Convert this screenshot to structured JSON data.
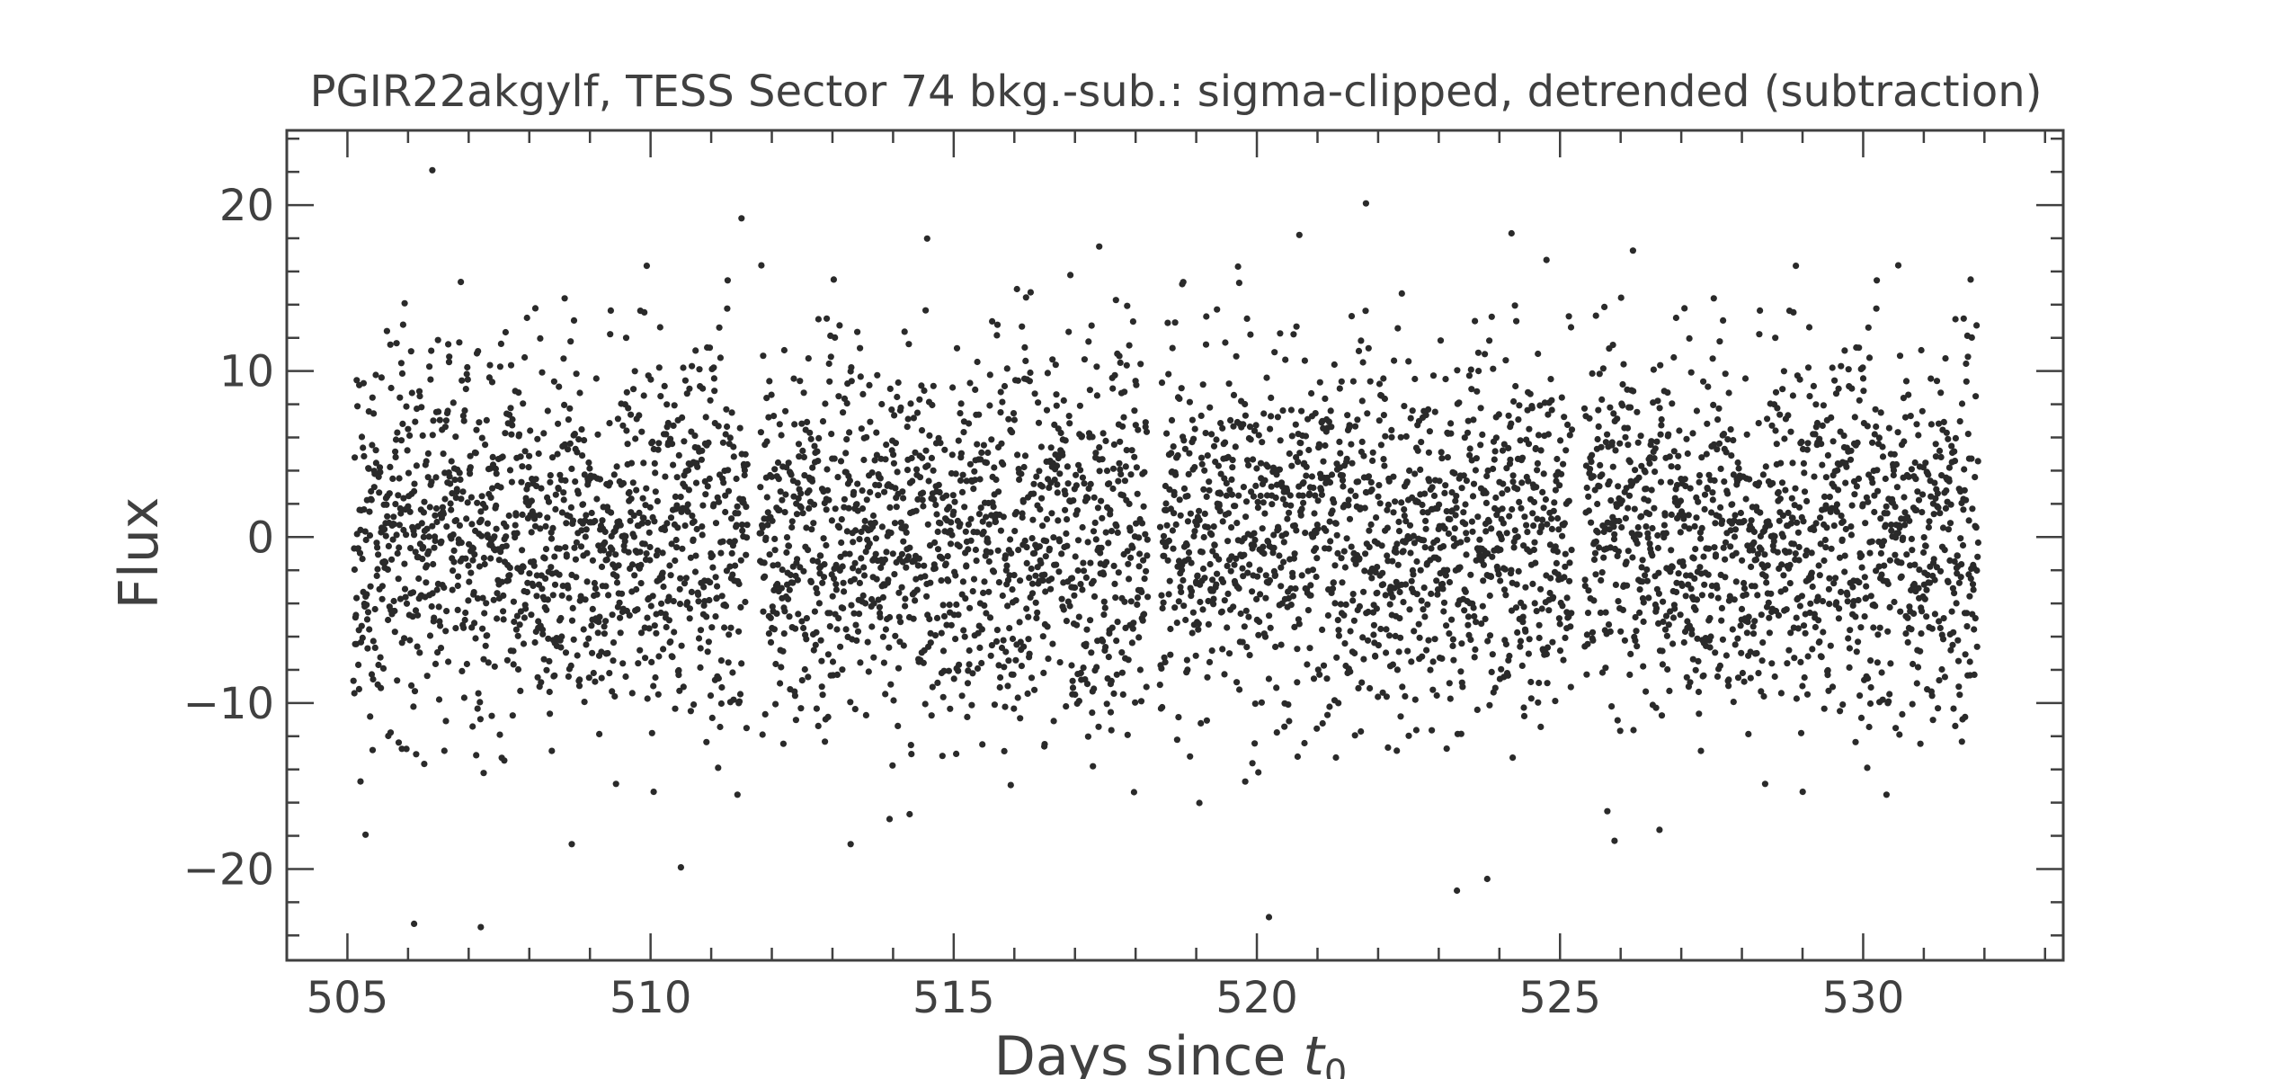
{
  "chart_data": {
    "type": "scatter",
    "title": "PGIR22akgylf, TESS Sector 74 bkg.-sub.: sigma-clipped, detrended (subtraction)",
    "xlabel_main": "Days since ",
    "xlabel_var": "t",
    "xlabel_sub": "0",
    "ylabel": "Flux",
    "xlim": [
      504.0,
      533.3
    ],
    "ylim": [
      -25.5,
      24.5
    ],
    "x_ticks": [
      505,
      510,
      515,
      520,
      525,
      530
    ],
    "x_tick_labels": [
      "505",
      "510",
      "515",
      "520",
      "525",
      "530"
    ],
    "y_ticks": [
      -20,
      -10,
      0,
      10,
      20
    ],
    "y_tick_labels": [
      "−20",
      "−10",
      "0",
      "10",
      "20"
    ],
    "grid": false,
    "marker_color": "#2a2a2a",
    "segments": [
      [
        505.1,
        511.6
      ],
      [
        511.8,
        518.2
      ],
      [
        518.4,
        525.2
      ],
      [
        525.4,
        531.9
      ]
    ],
    "noise_sigma": 5.5,
    "points_per_day": 190,
    "outliers": [
      {
        "x": 506.4,
        "y": 22.1
      },
      {
        "x": 511.5,
        "y": 19.2
      },
      {
        "x": 517.4,
        "y": 17.5
      },
      {
        "x": 521.8,
        "y": 20.1
      },
      {
        "x": 524.2,
        "y": 18.3
      },
      {
        "x": 520.7,
        "y": 18.2
      },
      {
        "x": 506.1,
        "y": -23.3
      },
      {
        "x": 507.2,
        "y": -23.5
      },
      {
        "x": 520.2,
        "y": -22.9
      },
      {
        "x": 523.3,
        "y": -21.3
      },
      {
        "x": 523.8,
        "y": -20.6
      },
      {
        "x": 510.5,
        "y": -19.9
      },
      {
        "x": 508.7,
        "y": -18.5
      },
      {
        "x": 513.3,
        "y": -18.5
      },
      {
        "x": 525.9,
        "y": -18.3
      }
    ]
  }
}
